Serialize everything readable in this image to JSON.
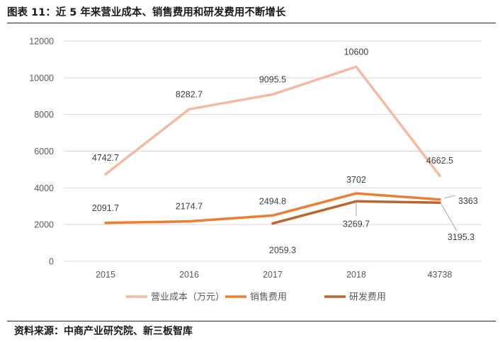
{
  "header": {
    "title": "图表 11：近 5 年来营业成本、销售费用和研发费用不断增长"
  },
  "footer": {
    "source": "资料来源：中商产业研究院、新三板智库"
  },
  "chart_data": {
    "type": "line",
    "title": "图表 11：近 5 年来营业成本、销售费用和研发费用不断增长",
    "xlabel": "",
    "ylabel": "",
    "categories": [
      "2015",
      "2016",
      "2017",
      "2018",
      "43738"
    ],
    "ylim": [
      0,
      12000
    ],
    "yticks": [
      0,
      2000,
      4000,
      6000,
      8000,
      10000,
      12000
    ],
    "grid": true,
    "legend_position": "bottom",
    "series": [
      {
        "name": "营业成本（万元）",
        "color": "#F4B9A0",
        "values": [
          4742.7,
          8282.7,
          9095.5,
          10600,
          4662.5
        ],
        "labels": [
          "4742.7",
          "8282.7",
          "9095.5",
          "10600",
          "4662.5"
        ]
      },
      {
        "name": "销售费用",
        "color": "#ED7D31",
        "values": [
          2091.7,
          2174.7,
          2494.8,
          3702,
          3363
        ],
        "labels": [
          "2091.7",
          "2174.7",
          "2494.8",
          "3702",
          "3363"
        ]
      },
      {
        "name": "研发费用",
        "color": "#C0632A",
        "values": [
          null,
          null,
          2059.3,
          3269.7,
          3195.3
        ],
        "labels": [
          null,
          null,
          "2059.3",
          "3269.7",
          "3195.3"
        ]
      }
    ]
  }
}
